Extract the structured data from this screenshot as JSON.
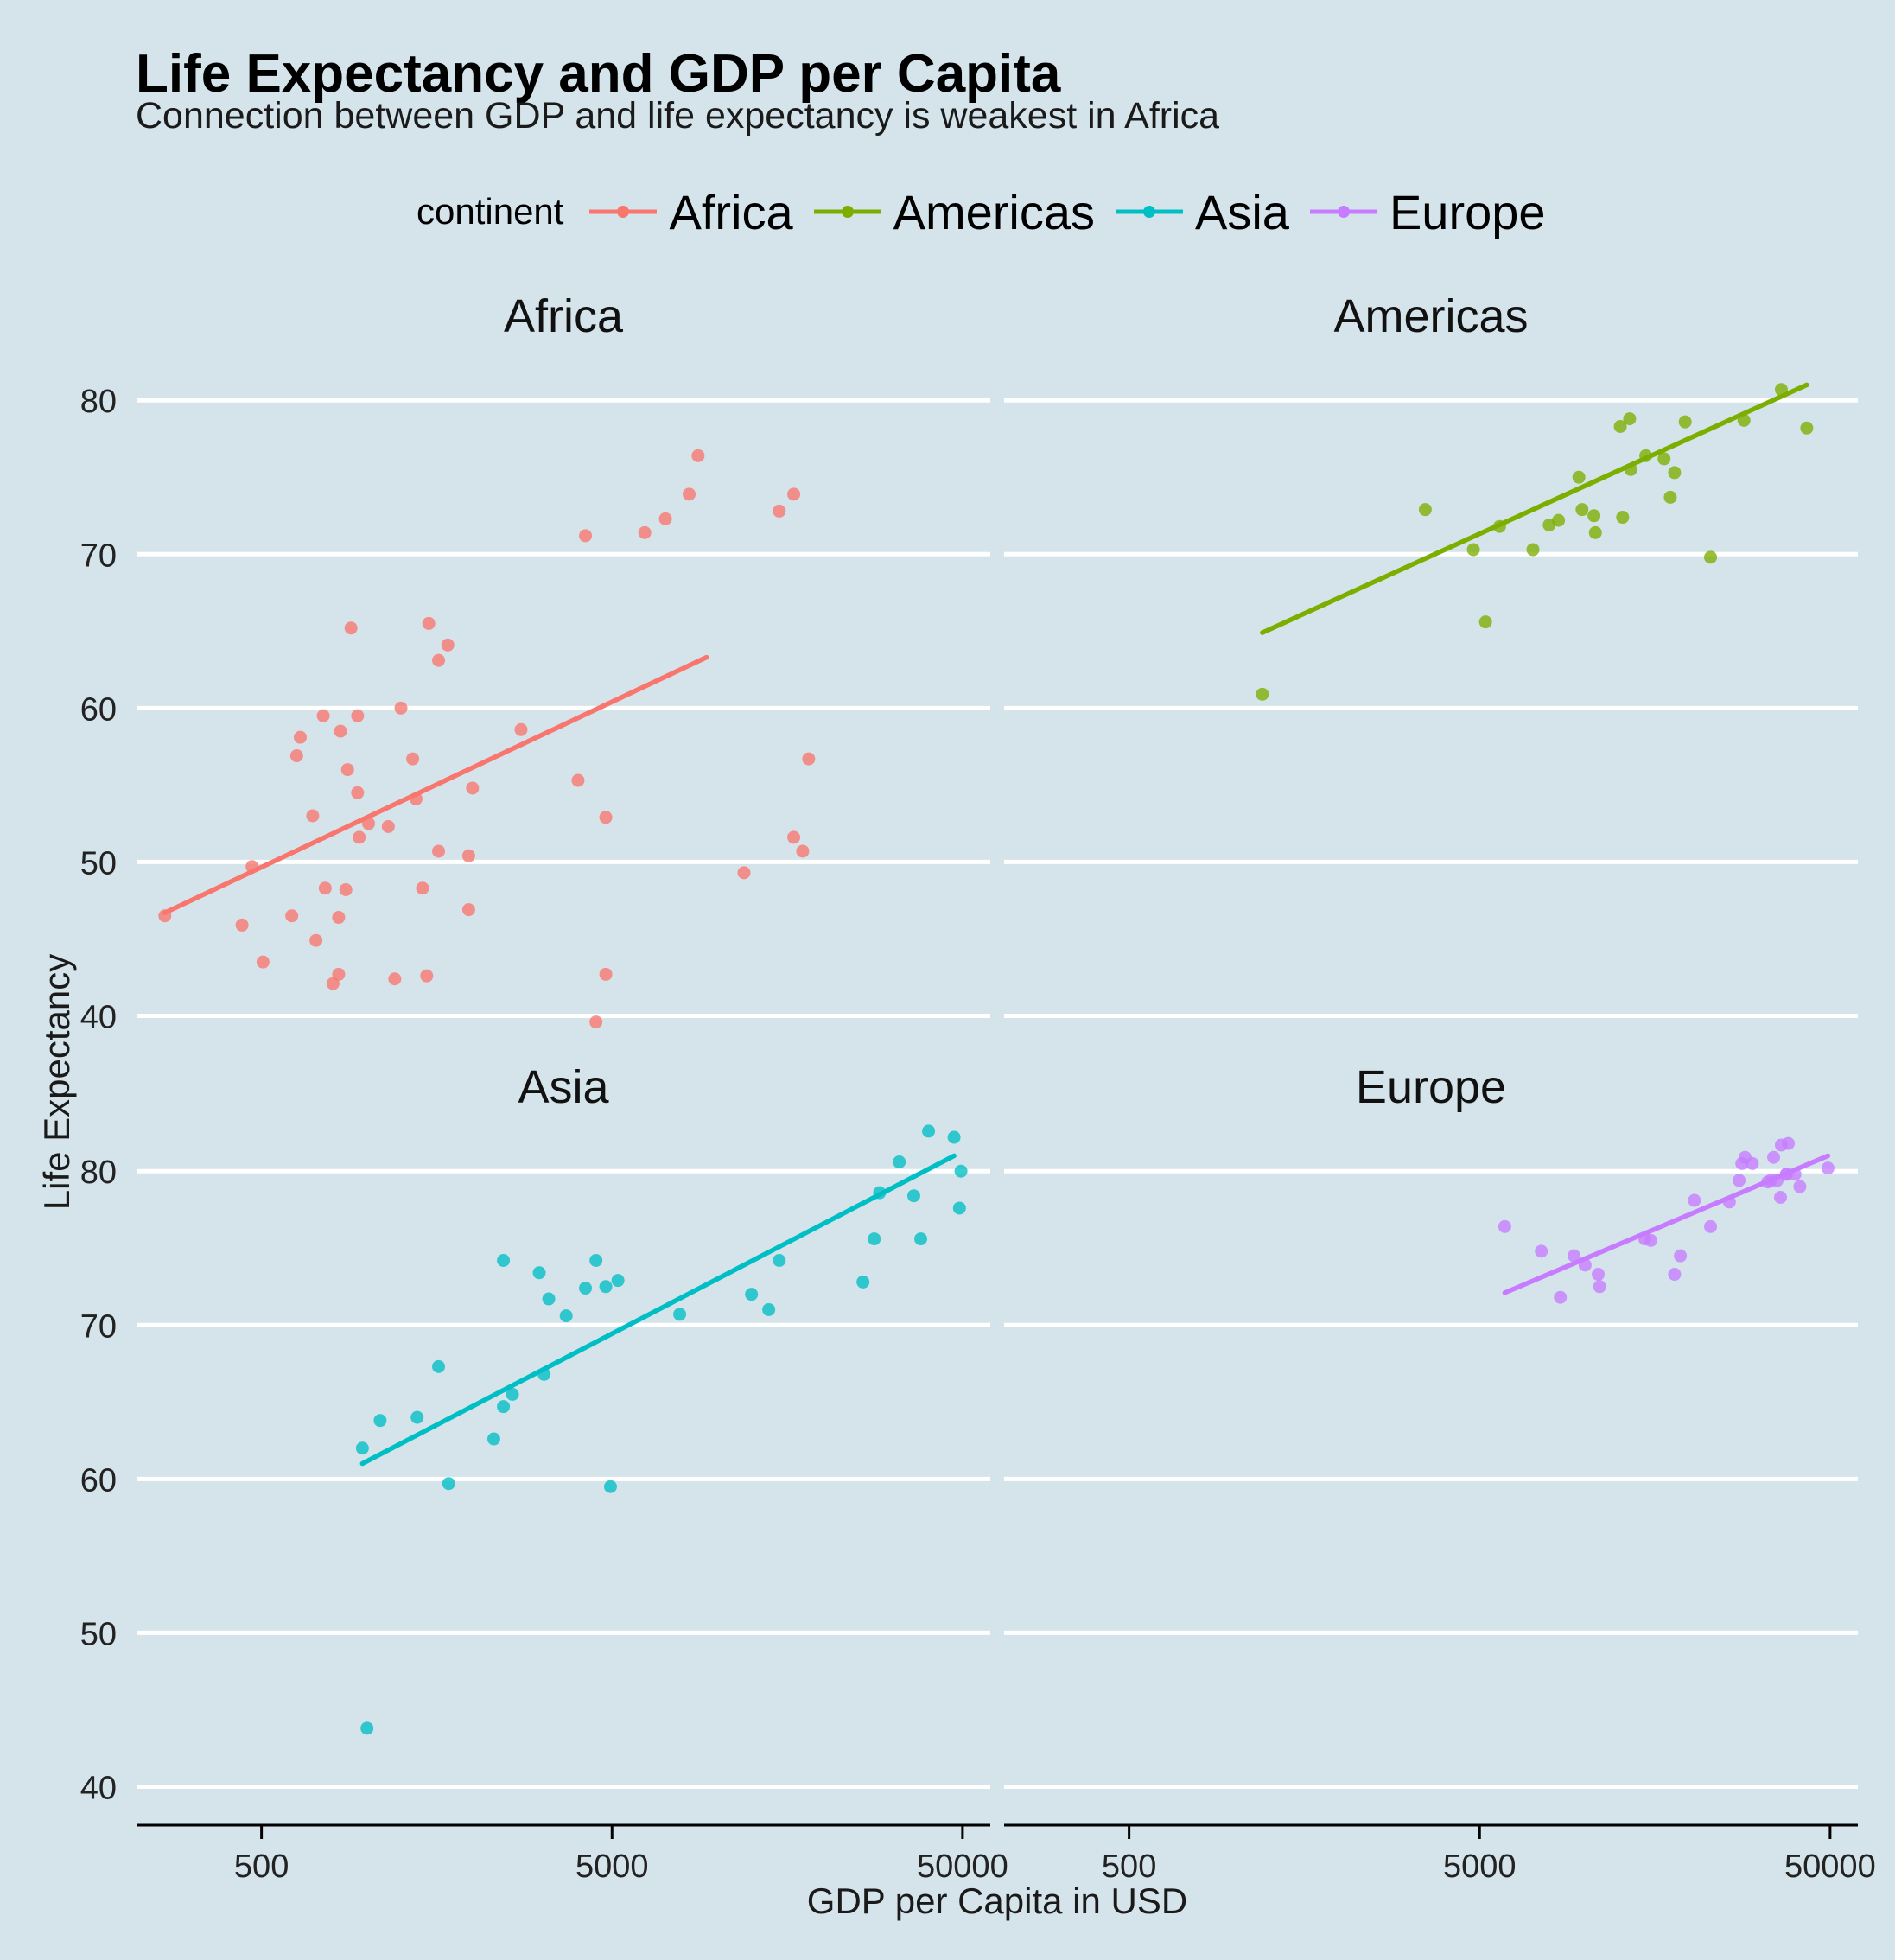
{
  "chart_data": {
    "type": "scatter",
    "title": "Life Expectancy and GDP per Capita",
    "subtitle": "Connection between GDP and life expectancy is weakest in Africa",
    "xlabel": "GDP per Capita in USD",
    "ylabel": "Life Expectancy",
    "x_scale": "log10",
    "xlim": [
      220,
      60000
    ],
    "ylim": [
      37.5,
      84
    ],
    "x_ticks": [
      "500",
      "5000",
      "50000"
    ],
    "x_tick_values": [
      500,
      5000,
      50000
    ],
    "y_ticks": [
      "40",
      "50",
      "60",
      "70",
      "80"
    ],
    "y_tick_values": [
      40,
      50,
      60,
      70,
      80
    ],
    "grid": "horizontal major",
    "legend": {
      "title": "continent",
      "placement": "top"
    },
    "panels": [
      {
        "name": "Africa",
        "color": "#f8766d",
        "fit": {
          "x": [
            265,
            9300
          ],
          "y": [
            46.7,
            63.3
          ]
        },
        "points": [
          [
            265,
            46.5
          ],
          [
            440,
            45.9
          ],
          [
            470,
            49.7
          ],
          [
            505,
            43.5
          ],
          [
            610,
            46.5
          ],
          [
            630,
            56.9
          ],
          [
            645,
            58.1
          ],
          [
            700,
            53
          ],
          [
            715,
            44.9
          ],
          [
            750,
            59.5
          ],
          [
            760,
            48.3
          ],
          [
            800,
            42.1
          ],
          [
            830,
            42.7
          ],
          [
            830,
            46.4
          ],
          [
            840,
            58.5
          ],
          [
            870,
            48.2
          ],
          [
            880,
            56
          ],
          [
            900,
            65.2
          ],
          [
            940,
            54.5
          ],
          [
            950,
            51.6
          ],
          [
            940,
            59.5
          ],
          [
            1010,
            52.5
          ],
          [
            1150,
            52.3
          ],
          [
            1200,
            42.4
          ],
          [
            1250,
            60
          ],
          [
            1350,
            56.7
          ],
          [
            1380,
            54.1
          ],
          [
            1440,
            48.3
          ],
          [
            1480,
            42.6
          ],
          [
            1500,
            65.5
          ],
          [
            1600,
            50.7
          ],
          [
            1600,
            63.1
          ],
          [
            1700,
            64.1
          ],
          [
            1950,
            46.9
          ],
          [
            1950,
            50.4
          ],
          [
            2000,
            54.8
          ],
          [
            2750,
            58.6
          ],
          [
            4000,
            55.3
          ],
          [
            4200,
            71.2
          ],
          [
            4500,
            39.6
          ],
          [
            4800,
            52.9
          ],
          [
            4800,
            42.7
          ],
          [
            6200,
            71.4
          ],
          [
            7100,
            72.3
          ],
          [
            8300,
            73.9
          ],
          [
            8800,
            76.4
          ],
          [
            11900,
            49.3
          ],
          [
            15000,
            72.8
          ],
          [
            16500,
            51.6
          ],
          [
            16500,
            73.9
          ],
          [
            17500,
            50.7
          ],
          [
            18200,
            56.7
          ]
        ]
      },
      {
        "name": "Americas",
        "color": "#7cae00",
        "fit": {
          "x": [
            1200,
            42900
          ],
          "y": [
            64.9,
            81
          ]
        },
        "points": [
          [
            1200,
            60.9
          ],
          [
            3500,
            72.9
          ],
          [
            4800,
            70.3
          ],
          [
            5200,
            65.6
          ],
          [
            5700,
            71.8
          ],
          [
            7100,
            70.3
          ],
          [
            7900,
            71.9
          ],
          [
            8400,
            72.2
          ],
          [
            9600,
            75
          ],
          [
            9800,
            72.9
          ],
          [
            10600,
            72.5
          ],
          [
            10700,
            71.4
          ],
          [
            12600,
            78.3
          ],
          [
            12800,
            72.4
          ],
          [
            13400,
            78.8
          ],
          [
            13500,
            75.5
          ],
          [
            14900,
            76.4
          ],
          [
            16800,
            76.2
          ],
          [
            17500,
            73.7
          ],
          [
            18000,
            75.3
          ],
          [
            19300,
            78.6
          ],
          [
            22800,
            69.8
          ],
          [
            28400,
            78.7
          ],
          [
            36300,
            80.7
          ],
          [
            42900,
            78.2
          ]
        ]
      },
      {
        "name": "Asia",
        "color": "#00bfc4",
        "fit": {
          "x": [
            970,
            47300
          ],
          "y": [
            61,
            81
          ]
        },
        "points": [
          [
            970,
            62
          ],
          [
            1000,
            43.8
          ],
          [
            1090,
            63.8
          ],
          [
            1390,
            64
          ],
          [
            1600,
            67.3
          ],
          [
            1710,
            59.7
          ],
          [
            2300,
            62.6
          ],
          [
            2450,
            74.2
          ],
          [
            2450,
            64.7
          ],
          [
            2600,
            65.5
          ],
          [
            3100,
            73.4
          ],
          [
            3200,
            66.8
          ],
          [
            3300,
            71.7
          ],
          [
            3700,
            70.6
          ],
          [
            4200,
            72.4
          ],
          [
            4500,
            74.2
          ],
          [
            4800,
            72.5
          ],
          [
            4950,
            59.5
          ],
          [
            5200,
            72.9
          ],
          [
            7800,
            70.7
          ],
          [
            12500,
            72
          ],
          [
            14000,
            71
          ],
          [
            15000,
            74.2
          ],
          [
            26000,
            72.8
          ],
          [
            28000,
            75.6
          ],
          [
            29000,
            78.6
          ],
          [
            33000,
            80.6
          ],
          [
            36300,
            78.4
          ],
          [
            38000,
            75.6
          ],
          [
            40000,
            82.6
          ],
          [
            47300,
            82.2
          ],
          [
            49000,
            77.6
          ],
          [
            49500,
            80
          ]
        ]
      },
      {
        "name": "Europe",
        "color": "#c77cff",
        "fit": {
          "x": [
            5900,
            49300
          ],
          "y": [
            72.1,
            81
          ]
        },
        "points": [
          [
            5900,
            76.4
          ],
          [
            7500,
            74.8
          ],
          [
            8500,
            71.8
          ],
          [
            9300,
            74.5
          ],
          [
            10000,
            73.9
          ],
          [
            10900,
            73.3
          ],
          [
            11000,
            72.5
          ],
          [
            14800,
            75.6
          ],
          [
            15400,
            75.5
          ],
          [
            18000,
            73.3
          ],
          [
            18700,
            74.5
          ],
          [
            20500,
            78.1
          ],
          [
            22800,
            76.4
          ],
          [
            25800,
            78
          ],
          [
            27500,
            79.4
          ],
          [
            28000,
            80.5
          ],
          [
            28600,
            80.9
          ],
          [
            30000,
            80.5
          ],
          [
            33200,
            79.3
          ],
          [
            33900,
            79.4
          ],
          [
            34500,
            80.9
          ],
          [
            35300,
            79.4
          ],
          [
            36100,
            78.3
          ],
          [
            36300,
            81.7
          ],
          [
            37500,
            79.8
          ],
          [
            37500,
            79.8
          ],
          [
            38000,
            81.8
          ],
          [
            39700,
            79.8
          ],
          [
            41000,
            79
          ],
          [
            49300,
            80.2
          ]
        ]
      }
    ]
  }
}
